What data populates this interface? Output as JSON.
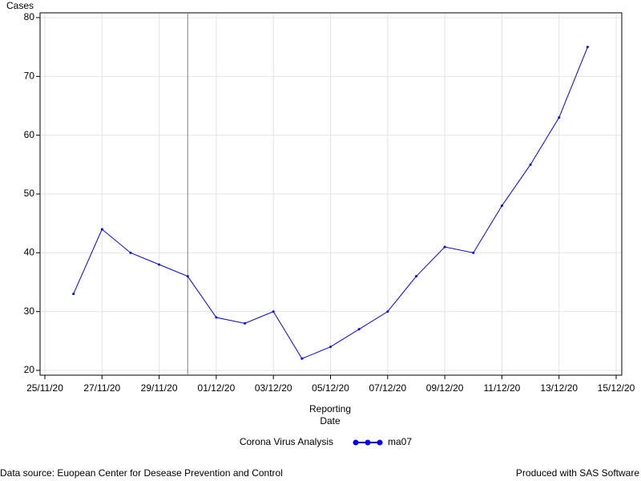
{
  "chart_data": {
    "type": "line",
    "y_label": "Cases",
    "x_label": [
      "Reporting",
      "Date"
    ],
    "legend_title": "Corona Virus Analysis",
    "x": [
      "26/11/20",
      "27/11/20",
      "28/11/20",
      "29/11/20",
      "30/11/20",
      "01/12/20",
      "02/12/20",
      "03/12/20",
      "04/12/20",
      "05/12/20",
      "06/12/20",
      "07/12/20",
      "08/12/20",
      "09/12/20",
      "10/12/20",
      "11/12/20",
      "12/12/20",
      "13/12/20",
      "14/12/20"
    ],
    "series": [
      {
        "name": "ma07",
        "color": "#0000ff",
        "values": [
          33,
          44,
          40,
          38,
          36,
          29,
          28,
          30,
          22,
          24,
          27,
          30,
          36,
          41,
          40,
          48,
          55,
          63,
          75
        ]
      }
    ],
    "xlim": [
      "25/11/20",
      "15/12/20"
    ],
    "xticks": [
      "25/11/20",
      "27/11/20",
      "29/11/20",
      "01/12/20",
      "03/12/20",
      "05/12/20",
      "07/12/20",
      "09/12/20",
      "11/12/20",
      "13/12/20",
      "15/12/20"
    ],
    "ylim": [
      20,
      80
    ],
    "yticks": [
      20,
      30,
      40,
      50,
      60,
      70,
      80
    ],
    "grid": true,
    "reference_x": "30/11/20",
    "footnote_left": "Data source: Euopean Center for Desease Prevention and Control",
    "footnote_right": "Produced with SAS Software"
  }
}
